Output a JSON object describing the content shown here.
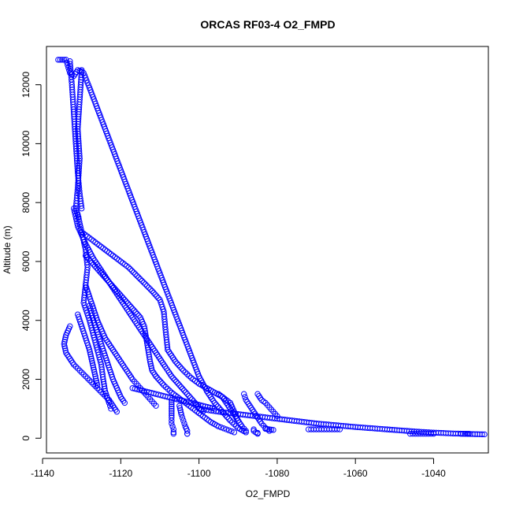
{
  "chart_data": {
    "type": "scatter",
    "title": "ORCAS RF03-4 O2_FMPD",
    "xlabel": "O2_FMPD",
    "ylabel": "Altitude (m)",
    "xlim": [
      -1139,
      -1026
    ],
    "ylim": [
      -500,
      13300
    ],
    "xticks": [
      -1140,
      -1120,
      -1100,
      -1080,
      -1060,
      -1040
    ],
    "yticks": [
      0,
      2000,
      4000,
      6000,
      8000,
      10000,
      12000
    ],
    "grid": false,
    "marker": "open-circle",
    "color": "#0000ff",
    "segments": [
      {
        "x": [
          -1136,
          -1135,
          -1134,
          -1133,
          -1132,
          -1131,
          -1130
        ],
        "y": [
          12850,
          12850,
          12850,
          12400,
          12300,
          12500,
          12450
        ]
      },
      {
        "x": [
          -1130,
          -1130.5,
          -1131,
          -1130.5,
          -1131,
          -1131.5,
          -1130.8
        ],
        "y": [
          12500,
          11500,
          10500,
          9500,
          8500,
          7800,
          7500
        ]
      },
      {
        "x": [
          -1133,
          -1132.5,
          -1132,
          -1131.5,
          -1131,
          -1130.5,
          -1130
        ],
        "y": [
          12800,
          12000,
          11000,
          10000,
          9000,
          8300,
          7800
        ]
      },
      {
        "x": [
          -1129.5,
          -1128,
          -1126,
          -1124,
          -1122,
          -1120,
          -1118,
          -1116,
          -1114,
          -1112,
          -1110,
          -1108,
          -1106,
          -1104,
          -1102,
          -1100,
          -1098,
          -1096,
          -1094,
          -1092,
          -1090,
          -1088
        ],
        "y": [
          12400,
          11900,
          11200,
          10500,
          9800,
          9100,
          8400,
          7700,
          7000,
          6300,
          5600,
          4900,
          4200,
          3500,
          2800,
          2100,
          1600,
          1200,
          900,
          600,
          350,
          200
        ]
      },
      {
        "x": [
          -1131,
          -1130,
          -1129,
          -1128.5,
          -1129,
          -1129.5,
          -1128,
          -1127,
          -1126,
          -1125,
          -1124.5,
          -1124,
          -1123,
          -1122.5
        ],
        "y": [
          7600,
          7000,
          6400,
          5800,
          5200,
          4600,
          4000,
          3500,
          3000,
          2500,
          2000,
          1600,
          1200,
          1000
        ]
      },
      {
        "x": [
          -1132,
          -1131,
          -1129,
          -1127,
          -1125,
          -1123,
          -1121,
          -1119,
          -1117,
          -1115,
          -1113,
          -1111,
          -1109,
          -1107,
          -1105,
          -1103,
          -1101,
          -1099
        ],
        "y": [
          7800,
          7200,
          6600,
          6100,
          5700,
          5300,
          4900,
          4500,
          4100,
          3700,
          3300,
          2900,
          2500,
          2100,
          1800,
          1500,
          1200,
          900
        ]
      },
      {
        "x": [
          -1130,
          -1127,
          -1124,
          -1121,
          -1118,
          -1115,
          -1112,
          -1110,
          -1109,
          -1108.5,
          -1108
        ],
        "y": [
          7000,
          6700,
          6400,
          6100,
          5800,
          5400,
          5000,
          4700,
          4300,
          3600,
          3000
        ]
      },
      {
        "x": [
          -1108,
          -1106,
          -1104,
          -1102,
          -1100,
          -1098,
          -1096,
          -1094,
          -1092,
          -1091,
          -1090,
          -1089,
          -1088
        ],
        "y": [
          3000,
          2600,
          2300,
          2050,
          1850,
          1700,
          1550,
          1400,
          1200,
          900,
          600,
          400,
          250
        ]
      },
      {
        "x": [
          -1129,
          -1127,
          -1125,
          -1123,
          -1121,
          -1119,
          -1117,
          -1115,
          -1114,
          -1113.5,
          -1113,
          -1112.5,
          -1112,
          -1111
        ],
        "y": [
          6200,
          5900,
          5600,
          5300,
          5000,
          4700,
          4400,
          4100,
          3800,
          3400,
          3000,
          2600,
          2300,
          2100
        ]
      },
      {
        "x": [
          -1111,
          -1109,
          -1107,
          -1105,
          -1103,
          -1101,
          -1099,
          -1097,
          -1095,
          -1093,
          -1091
        ],
        "y": [
          2100,
          1800,
          1550,
          1350,
          1150,
          950,
          750,
          550,
          400,
          300,
          200
        ]
      },
      {
        "x": [
          -1129,
          -1128,
          -1127,
          -1126,
          -1125,
          -1124,
          -1123,
          -1122,
          -1121,
          -1120,
          -1119,
          -1118,
          -1117,
          -1116,
          -1115,
          -1114,
          -1113,
          -1112,
          -1111
        ],
        "y": [
          5200,
          4800,
          4400,
          4000,
          3700,
          3400,
          3200,
          3000,
          2800,
          2600,
          2400,
          2200,
          2000,
          1850,
          1700,
          1550,
          1400,
          1250,
          1100
        ]
      },
      {
        "x": [
          -1133,
          -1134,
          -1134.5,
          -1134,
          -1133,
          -1132,
          -1130.5,
          -1129,
          -1127.5,
          -1126,
          -1124.5,
          -1123,
          -1122,
          -1121
        ],
        "y": [
          3800,
          3500,
          3200,
          2900,
          2700,
          2500,
          2300,
          2100,
          1900,
          1700,
          1500,
          1300,
          1100,
          900
        ]
      },
      {
        "x": [
          -1131,
          -1130,
          -1129,
          -1128,
          -1127.5,
          -1127,
          -1126.5,
          -1126
        ],
        "y": [
          4200,
          3800,
          3400,
          3000,
          2700,
          2400,
          2100,
          1800
        ]
      },
      {
        "x": [
          -1128,
          -1127,
          -1126,
          -1125,
          -1124,
          -1123,
          -1122,
          -1121,
          -1120,
          -1119
        ],
        "y": [
          4500,
          4000,
          3600,
          3200,
          2800,
          2400,
          2000,
          1700,
          1400,
          1200
        ]
      },
      {
        "x": [
          -1107,
          -1107,
          -1107,
          -1107,
          -1106.5,
          -1106.5,
          -1106.5
        ],
        "y": [
          1300,
          1000,
          700,
          500,
          300,
          200,
          150
        ]
      },
      {
        "x": [
          -1105,
          -1104.5,
          -1104,
          -1103.5,
          -1103,
          -1103,
          -1103
        ],
        "y": [
          1100,
          800,
          600,
          400,
          250,
          150,
          150
        ]
      },
      {
        "x": [
          -1088.5,
          -1088,
          -1087,
          -1086,
          -1085,
          -1084,
          -1083,
          -1082
        ],
        "y": [
          1500,
          1300,
          1100,
          900,
          700,
          500,
          350,
          250
        ]
      },
      {
        "x": [
          -1085,
          -1084,
          -1083,
          -1082,
          -1081,
          -1080
        ],
        "y": [
          1500,
          1300,
          1200,
          1050,
          900,
          750
        ]
      },
      {
        "x": [
          -1095,
          -1094,
          -1093,
          -1092,
          -1091,
          -1090
        ],
        "y": [
          1500,
          1400,
          1200,
          1000,
          800,
          600
        ]
      },
      {
        "x": [
          -1100,
          -1095,
          -1090,
          -1085,
          -1080,
          -1075,
          -1070,
          -1065,
          -1060,
          -1055,
          -1050,
          -1045,
          -1040,
          -1035,
          -1030,
          -1027
        ],
        "y": [
          1000,
          900,
          820,
          740,
          660,
          580,
          500,
          440,
          380,
          330,
          280,
          230,
          190,
          160,
          140,
          130
        ]
      },
      {
        "x": [
          -1072,
          -1070,
          -1068,
          -1066,
          -1064
        ],
        "y": [
          300,
          300,
          300,
          300,
          300
        ]
      },
      {
        "x": [
          -1046,
          -1044,
          -1042,
          -1040
        ],
        "y": [
          150,
          150,
          150,
          150
        ]
      },
      {
        "x": [
          -1033,
          -1032,
          -1031
        ],
        "y": [
          150,
          150,
          150
        ]
      },
      {
        "x": [
          -1117,
          -1114,
          -1111,
          -1108,
          -1105,
          -1102,
          -1099,
          -1096
        ],
        "y": [
          1700,
          1600,
          1500,
          1400,
          1300,
          1200,
          1100,
          1000
        ]
      },
      {
        "x": [
          -1086,
          -1086,
          -1085.5,
          -1085,
          -1085
        ],
        "y": [
          300,
          250,
          200,
          180,
          150
        ]
      },
      {
        "x": [
          -1083,
          -1082,
          -1081
        ],
        "y": [
          320,
          300,
          280
        ]
      }
    ]
  }
}
